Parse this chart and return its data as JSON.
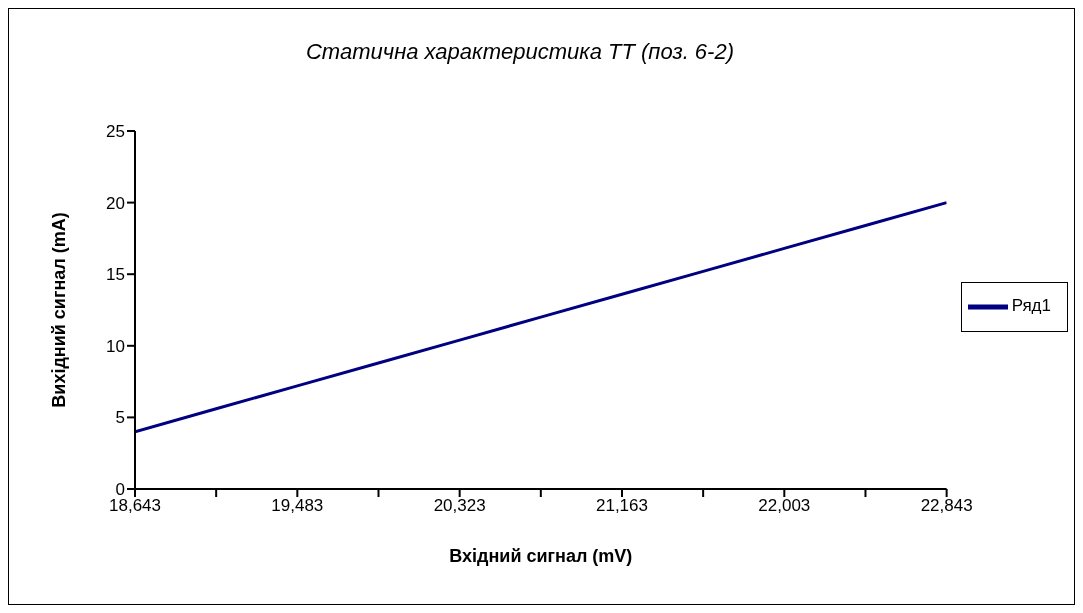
{
  "chart_data": {
    "type": "line",
    "title": "Статична характеристика ТТ (поз. 6-2)",
    "xlabel": "Вхідний сигнал  (mV)",
    "ylabel": "Вихідний сигнал (mA)",
    "categories": [
      "18,643",
      null,
      "19,483",
      null,
      "20,323",
      null,
      "21,163",
      null,
      "22,003",
      null,
      "22,843"
    ],
    "series": [
      {
        "name": "Ряд1",
        "color": "#000080",
        "values": [
          4,
          5.6,
          7.2,
          8.8,
          10.4,
          12,
          13.6,
          15.2,
          16.8,
          18.4,
          20
        ]
      }
    ],
    "ylim": [
      0,
      25
    ],
    "yticks": [
      0,
      5,
      10,
      15,
      20,
      25
    ],
    "grid": false,
    "legend": "right",
    "marker": "none",
    "line_style": "solid"
  }
}
